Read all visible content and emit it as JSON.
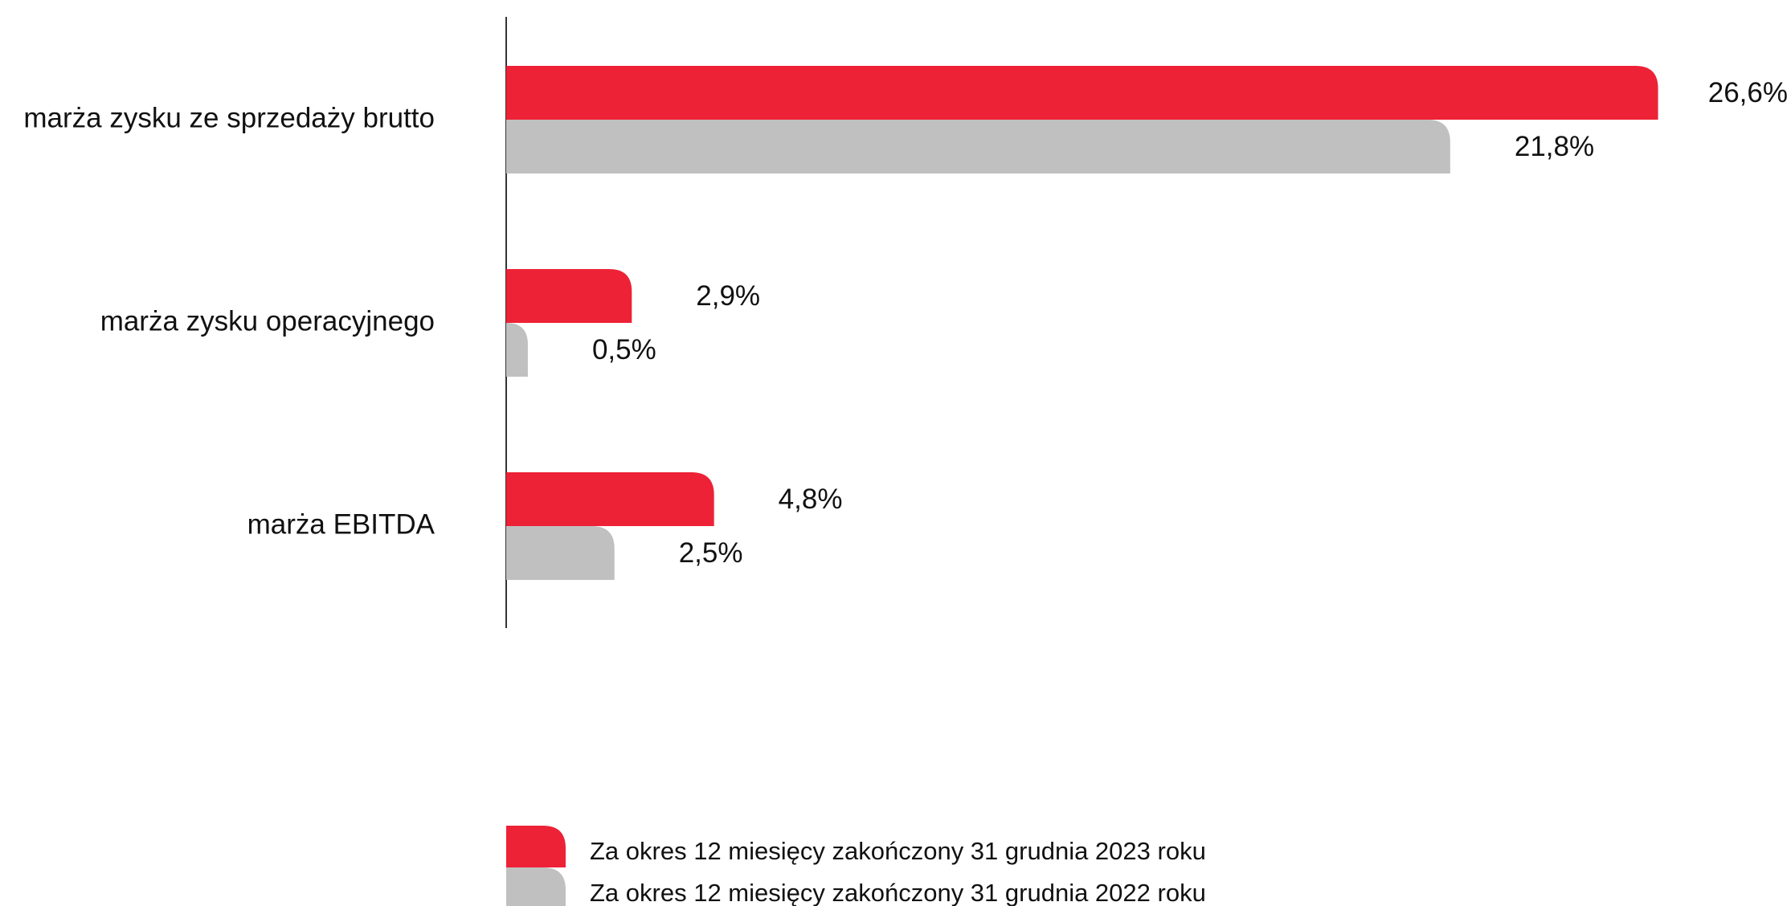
{
  "chart_data": {
    "type": "hbar",
    "categories": [
      "marża zysku ze sprzedaży brutto",
      "marża zysku operacyjnego",
      "marża EBITDA"
    ],
    "series": [
      {
        "name": "Za okres 12 miesięcy zakończony 31 grudnia 2023 roku",
        "color": "#ed2236",
        "values": [
          26.6,
          2.9,
          4.8
        ],
        "value_labels": [
          "26,6%",
          "2,9%",
          "4,8%"
        ]
      },
      {
        "name": "Za okres 12 miesięcy zakończony 31 grudnia 2022 roku",
        "color": "#c0c0c0",
        "values": [
          21.8,
          0.5,
          2.5
        ],
        "value_labels": [
          "21,8%",
          "0,5%",
          "2,5%"
        ]
      }
    ],
    "xlim": [
      0,
      28
    ]
  }
}
